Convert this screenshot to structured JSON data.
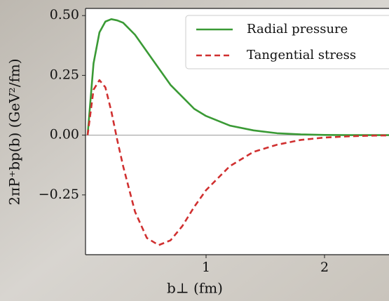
{
  "chart_data": {
    "type": "line",
    "xlabel": "b⊥ (fm)",
    "ylabel": "2πP⁺bp(b) (GeV²/fm)",
    "x": [
      0,
      0.05,
      0.1,
      0.15,
      0.2,
      0.25,
      0.3,
      0.4,
      0.5,
      0.6,
      0.7,
      0.8,
      0.9,
      1.0,
      1.2,
      1.4,
      1.6,
      1.8,
      2.0,
      2.2,
      2.4,
      2.55
    ],
    "series": [
      {
        "name": "Radial pressure",
        "color": "#3a9a35",
        "dash": false,
        "values": [
          0,
          0.3,
          0.43,
          0.475,
          0.485,
          0.48,
          0.47,
          0.42,
          0.35,
          0.28,
          0.21,
          0.16,
          0.11,
          0.08,
          0.04,
          0.02,
          0.008,
          0.003,
          0.001,
          0,
          0,
          0
        ]
      },
      {
        "name": "Tangential stress",
        "color": "#d03030",
        "dash": true,
        "values": [
          0,
          0.19,
          0.23,
          0.2,
          0.1,
          -0.02,
          -0.13,
          -0.32,
          -0.43,
          -0.46,
          -0.44,
          -0.38,
          -0.3,
          -0.23,
          -0.13,
          -0.07,
          -0.04,
          -0.02,
          -0.01,
          -0.005,
          -0.002,
          -0.001
        ]
      }
    ],
    "xlim": [
      0,
      2.55
    ],
    "ylim": [
      -0.5,
      0.53
    ],
    "xticks": [
      1,
      2
    ],
    "yticks": [
      {
        "value": 0.5,
        "label": "0.50"
      },
      0.25,
      {
        "value": 0,
        "label": "0.00"
      },
      {
        "value": -0.25,
        "label": "−0.25"
      }
    ],
    "zero_line": true,
    "legend": "upper right"
  }
}
